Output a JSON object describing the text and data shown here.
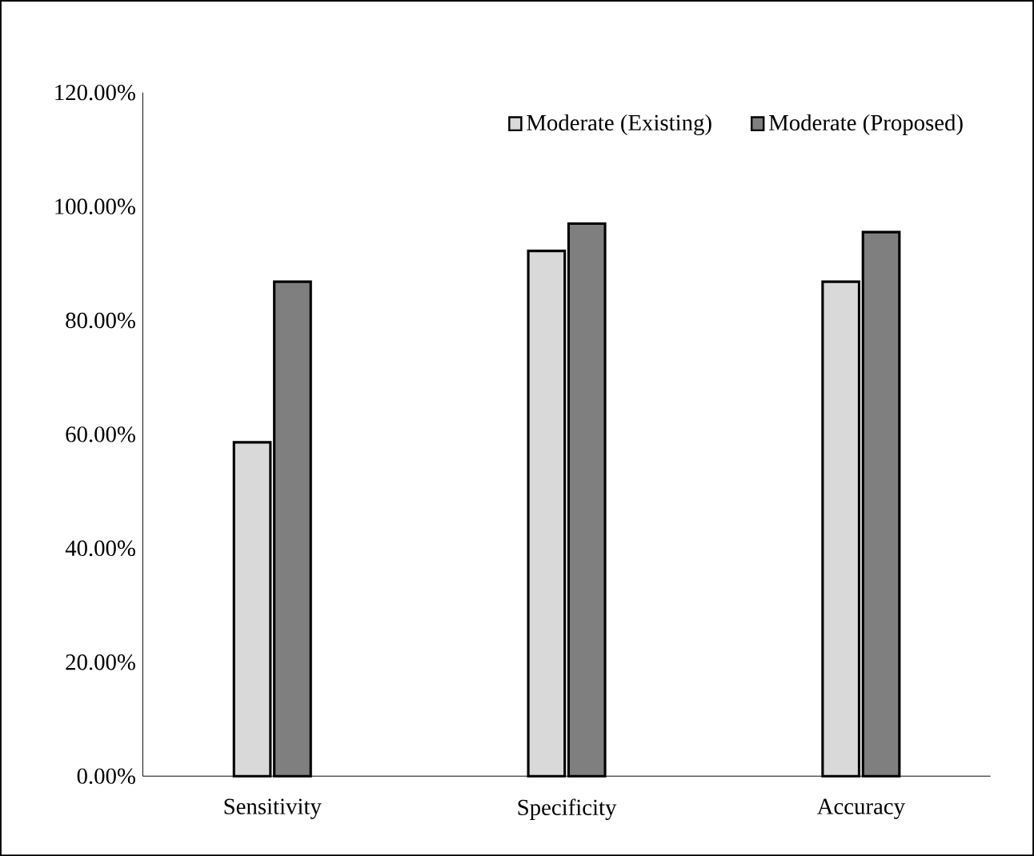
{
  "chart_data": {
    "type": "bar",
    "categories": [
      "Sensitivity",
      "Specificity",
      "Accuracy"
    ],
    "series": [
      {
        "name": "Moderate (Existing)",
        "color": "#d9d9d9",
        "values": [
          58.6,
          92.2,
          86.8
        ]
      },
      {
        "name": "Moderate (Proposed)",
        "color": "#7f7f7f",
        "values": [
          86.8,
          97.0,
          95.5
        ]
      }
    ],
    "ylim": [
      0,
      120
    ],
    "yticks": [
      {
        "value": 0,
        "label": "0.00%"
      },
      {
        "value": 20,
        "label": "20.00%"
      },
      {
        "value": 40,
        "label": "40.00%"
      },
      {
        "value": 60,
        "label": "60.00%"
      },
      {
        "value": 80,
        "label": "80.00%"
      },
      {
        "value": 100,
        "label": "100.00%"
      },
      {
        "value": 120,
        "label": "120.00%"
      }
    ],
    "grid": false,
    "legend": "top right"
  }
}
